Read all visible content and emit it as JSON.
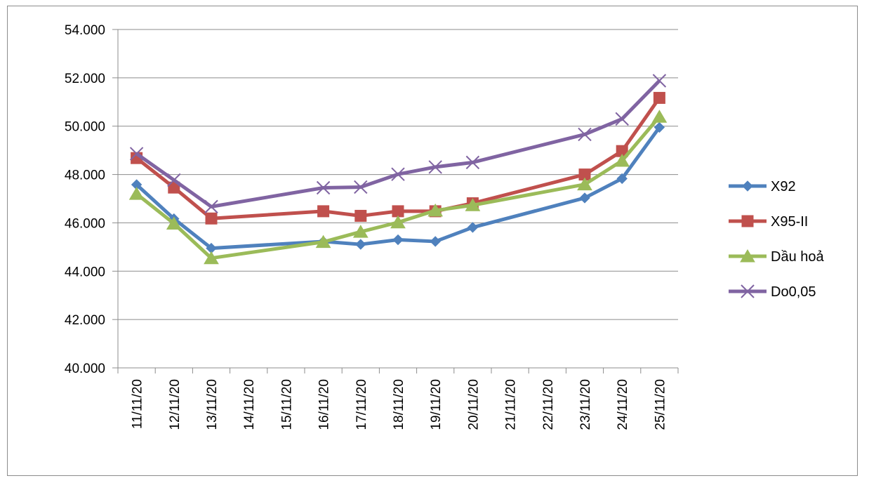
{
  "chart_data": {
    "type": "line",
    "title": "",
    "xlabel": "",
    "ylabel": "",
    "categories": [
      "11/11/20",
      "12/11/20",
      "13/11/20",
      "14/11/20",
      "15/11/20",
      "16/11/20",
      "17/11/20",
      "18/11/20",
      "19/11/20",
      "20/11/20",
      "21/11/20",
      "22/11/20",
      "23/11/20",
      "24/11/20",
      "25/11/20"
    ],
    "y_ticks": [
      "40.000",
      "42.000",
      "44.000",
      "46.000",
      "48.000",
      "50.000",
      "52.000",
      "54.000"
    ],
    "ylim": [
      40000,
      54000
    ],
    "grid": true,
    "legend_position": "right",
    "series": [
      {
        "name": "X92",
        "color": "#4f81bd",
        "marker": "diamond",
        "values": [
          47580,
          46170,
          44950,
          null,
          null,
          45230,
          45110,
          45300,
          45230,
          45810,
          null,
          null,
          47030,
          47830,
          49950
        ]
      },
      {
        "name": "X95-II",
        "color": "#c0504d",
        "marker": "square",
        "values": [
          48680,
          47460,
          46180,
          null,
          null,
          46480,
          46290,
          46480,
          46480,
          46810,
          null,
          null,
          48000,
          48970,
          51170
        ]
      },
      {
        "name": "Dầu hoả",
        "color": "#9bbb59",
        "marker": "triangle",
        "values": [
          47200,
          45970,
          44540,
          null,
          null,
          45210,
          45630,
          46020,
          46510,
          46730,
          null,
          null,
          47590,
          48570,
          50390
        ]
      },
      {
        "name": "Do0,05",
        "color": "#8064a2",
        "marker": "x",
        "values": [
          48860,
          47770,
          46670,
          null,
          null,
          47450,
          47480,
          48010,
          48310,
          48500,
          null,
          null,
          49660,
          50300,
          51880
        ]
      }
    ]
  }
}
